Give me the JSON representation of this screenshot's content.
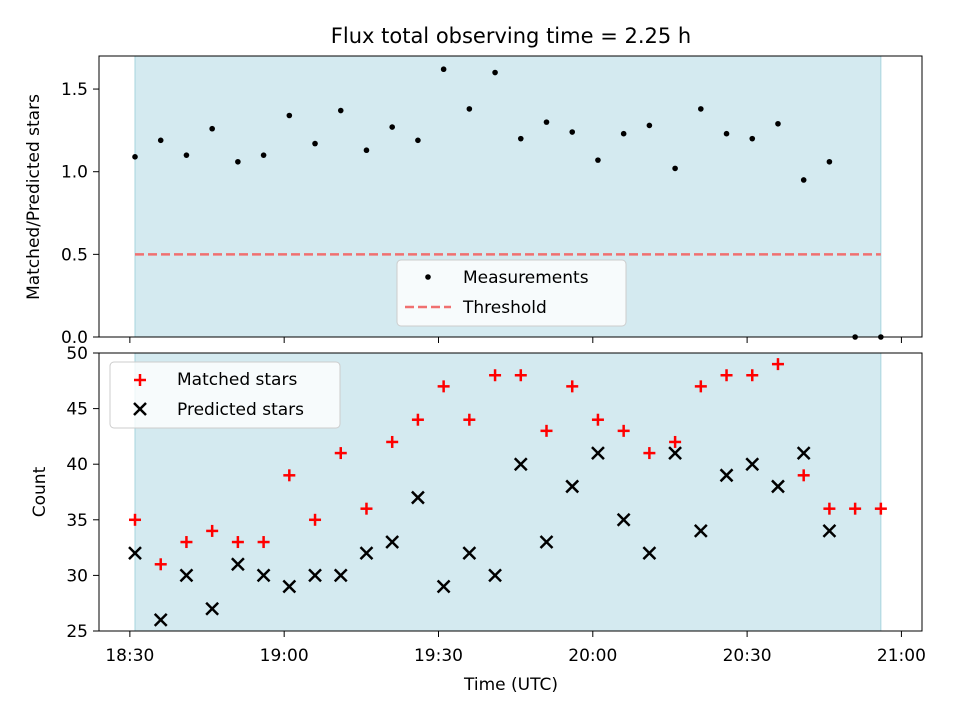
{
  "figure": {
    "title": "Flux total observing time = 2.25 h",
    "shared_xlabel": "Time (UTC)"
  },
  "chart_data": [
    {
      "type": "scatter",
      "ylabel": "Matched/Predicted stars",
      "ylim": [
        0,
        1.7
      ],
      "yticks": [
        "0.0",
        "0.5",
        "1.0",
        "1.5"
      ],
      "ytick_values": [
        0,
        0.5,
        1.0,
        1.5
      ],
      "xlim": [
        "18:24",
        "21:04"
      ],
      "x_time_ticks": [
        "18:30",
        "19:00",
        "19:30",
        "20:00",
        "20:30",
        "21:00"
      ],
      "x_tick_labels_shown": false,
      "observing_window": [
        "18:31",
        "20:56"
      ],
      "observing_window_color": "#d4eaf0",
      "series": [
        {
          "name": "Measurements",
          "marker": "dot",
          "color": "#000000",
          "x": [
            "18:31",
            "18:36",
            "18:41",
            "18:46",
            "18:51",
            "18:56",
            "19:01",
            "19:06",
            "19:11",
            "19:16",
            "19:21",
            "19:26",
            "19:31",
            "19:36",
            "19:41",
            "19:46",
            "19:51",
            "19:56",
            "20:01",
            "20:06",
            "20:11",
            "20:16",
            "20:21",
            "20:26",
            "20:31",
            "20:36",
            "20:41",
            "20:46",
            "20:51",
            "20:56"
          ],
          "y": [
            1.09,
            1.19,
            1.1,
            1.26,
            1.06,
            1.1,
            1.34,
            1.17,
            1.37,
            1.13,
            1.27,
            1.19,
            1.62,
            1.38,
            1.6,
            1.2,
            1.3,
            1.24,
            1.07,
            1.23,
            1.28,
            1.02,
            1.38,
            1.23,
            1.2,
            1.29,
            0.95,
            1.06,
            0.0,
            0.0
          ]
        },
        {
          "name": "Threshold",
          "style": "dashed",
          "color": "#f07070",
          "x": [
            "18:31",
            "20:56"
          ],
          "y": [
            0.5,
            0.5
          ]
        }
      ],
      "legend": {
        "position": "lower-center",
        "entries": [
          "Measurements",
          "Threshold"
        ]
      }
    },
    {
      "type": "scatter",
      "ylabel": "Count",
      "ylim": [
        25,
        50
      ],
      "yticks": [
        "25",
        "30",
        "35",
        "40",
        "45",
        "50"
      ],
      "ytick_values": [
        25,
        30,
        35,
        40,
        45,
        50
      ],
      "xlabel": "Time (UTC)",
      "xlim": [
        "18:24",
        "21:04"
      ],
      "x_time_ticks": [
        "18:30",
        "19:00",
        "19:30",
        "20:00",
        "20:30",
        "21:00"
      ],
      "observing_window": [
        "18:31",
        "20:56"
      ],
      "observing_window_color": "#d4eaf0",
      "series": [
        {
          "name": "Matched stars",
          "marker": "plus",
          "color": "#ff0000",
          "x": [
            "18:31",
            "18:36",
            "18:41",
            "18:46",
            "18:51",
            "18:56",
            "19:01",
            "19:06",
            "19:11",
            "19:16",
            "19:21",
            "19:26",
            "19:31",
            "19:36",
            "19:41",
            "19:46",
            "19:51",
            "19:56",
            "20:01",
            "20:06",
            "20:11",
            "20:16",
            "20:21",
            "20:26",
            "20:31",
            "20:36",
            "20:41",
            "20:46",
            "20:51",
            "20:56"
          ],
          "y": [
            35,
            31,
            33,
            34,
            33,
            33,
            39,
            35,
            41,
            36,
            42,
            44,
            47,
            44,
            48,
            48,
            43,
            47,
            44,
            43,
            41,
            42,
            47,
            48,
            48,
            49,
            39,
            36,
            36,
            36
          ]
        },
        {
          "name": "Predicted stars",
          "marker": "x",
          "color": "#000000",
          "x": [
            "18:31",
            "18:36",
            "18:41",
            "18:46",
            "18:51",
            "18:56",
            "19:01",
            "19:06",
            "19:11",
            "19:16",
            "19:21",
            "19:26",
            "19:31",
            "19:36",
            "19:41",
            "19:46",
            "19:51",
            "19:56",
            "20:01",
            "20:06",
            "20:11",
            "20:16",
            "20:21",
            "20:26",
            "20:31",
            "20:36",
            "20:41",
            "20:46"
          ],
          "y": [
            32,
            26,
            30,
            27,
            31,
            30,
            29,
            30,
            30,
            32,
            33,
            37,
            29,
            32,
            30,
            40,
            33,
            38,
            41,
            35,
            32,
            41,
            34,
            39,
            40,
            38,
            41,
            34
          ]
        }
      ],
      "legend": {
        "position": "upper-left",
        "entries": [
          "Matched stars",
          "Predicted stars"
        ]
      }
    }
  ]
}
